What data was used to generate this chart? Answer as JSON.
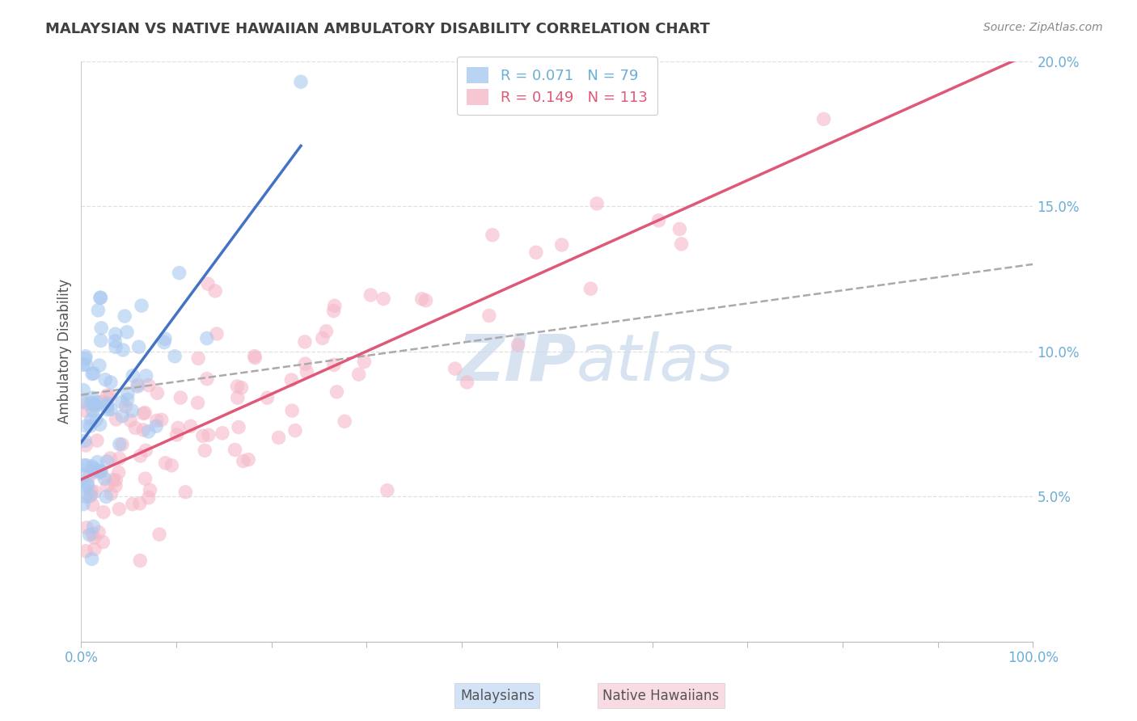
{
  "title": "MALAYSIAN VS NATIVE HAWAIIAN AMBULATORY DISABILITY CORRELATION CHART",
  "source": "Source: ZipAtlas.com",
  "ylabel": "Ambulatory Disability",
  "xlim": [
    0,
    100
  ],
  "ylim": [
    0,
    20
  ],
  "ytick_labels": [
    "",
    "5.0%",
    "10.0%",
    "15.0%",
    "20.0%"
  ],
  "malaysian_color": "#a8c8f0",
  "native_hawaiian_color": "#f5b8c8",
  "malaysian_line_color": "#4472c4",
  "native_hawaiian_line_color": "#e05878",
  "dashed_line_color": "#aaaaaa",
  "watermark_color": "#c8d8ec",
  "background_color": "#ffffff",
  "grid_color": "#e0e0e0",
  "title_color": "#404040",
  "axis_label_color": "#555555",
  "tick_label_color": "#6baed6",
  "source_color": "#888888",
  "r_malaysian": 0.071,
  "n_malaysian": 79,
  "r_native_hawaiian": 0.149,
  "n_native_hawaiian": 113,
  "mal_seed": 77,
  "haw_seed": 42
}
